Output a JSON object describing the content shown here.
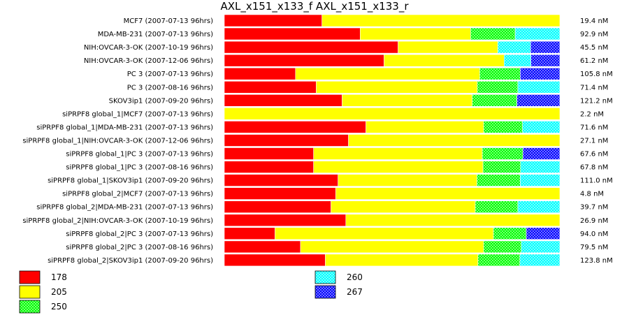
{
  "chart_data": {
    "type": "bar",
    "orientation": "horizontal",
    "stacked": true,
    "normalized": true,
    "title": "AXL_x151_x133_f  AXL_x151_x133_r",
    "categories": [
      "MCF7 (2007-07-13 96hrs)",
      "MDA-MB-231 (2007-07-13 96hrs)",
      "NIH:OVCAR-3-OK (2007-10-19 96hrs)",
      "NIH:OVCAR-3-OK (2007-12-06 96hrs)",
      "PC 3 (2007-07-13 96hrs)",
      "PC 3 (2007-08-16 96hrs)",
      "SKOV3ip1 (2007-09-20 96hrs)",
      "siPRPF8 global_1|MCF7 (2007-07-13 96hrs)",
      "siPRPF8 global_1|MDA-MB-231 (2007-07-13 96hrs)",
      "siPRPF8 global_1|NIH:OVCAR-3-OK (2007-12-06 96hrs)",
      "siPRPF8 global_1|PC 3 (2007-07-13 96hrs)",
      "siPRPF8 global_1|PC 3 (2007-08-16 96hrs)",
      "siPRPF8 global_1|SKOV3ip1 (2007-09-20 96hrs)",
      "siPRPF8 global_2|MCF7 (2007-07-13 96hrs)",
      "siPRPF8 global_2|MDA-MB-231 (2007-07-13 96hrs)",
      "siPRPF8 global_2|NIH:OVCAR-3-OK (2007-10-19 96hrs)",
      "siPRPF8 global_2|PC 3 (2007-07-13 96hrs)",
      "siPRPF8 global_2|PC 3 (2007-08-16 96hrs)",
      "siPRPF8 global_2|SKOV3ip1 (2007-09-20 96hrs)"
    ],
    "concentrations": [
      "19.4 nM",
      "92.9 nM",
      "45.5 nM",
      "61.2 nM",
      "105.8 nM",
      "71.4 nM",
      "121.2 nM",
      "2.2 nM",
      "71.6 nM",
      "27.1 nM",
      "67.6 nM",
      "67.8 nM",
      "111.0 nM",
      "4.8 nM",
      "39.7 nM",
      "26.9 nM",
      "94.0 nM",
      "79.5 nM",
      "123.8 nM"
    ],
    "series": [
      {
        "name": "178",
        "color": "#ff0000",
        "pattern": "solid",
        "values": [
          29.1,
          40.5,
          51.8,
          47.6,
          21.2,
          27.4,
          35.1,
          0,
          42.2,
          37.0,
          26.6,
          26.6,
          33.9,
          33.2,
          31.8,
          36.2,
          15.1,
          22.7,
          30.1
        ]
      },
      {
        "name": "205",
        "color": "#ffff00",
        "pattern": "solid",
        "values": [
          70.9,
          32.9,
          29.7,
          35.8,
          54.9,
          48.0,
          38.8,
          100,
          35.1,
          63.0,
          50.3,
          50.5,
          41.4,
          66.8,
          43.0,
          63.8,
          65.1,
          54.6,
          45.5
        ]
      },
      {
        "name": "250",
        "color": "#00ff00",
        "pattern": "checker",
        "values": [
          0,
          13.3,
          0,
          0,
          12.1,
          12.1,
          13.3,
          0,
          11.6,
          0,
          12.1,
          11.2,
          12.9,
          0,
          12.7,
          0,
          9.8,
          11.2,
          12.5
        ]
      },
      {
        "name": "260",
        "color": "#00ffff",
        "pattern": "checker",
        "values": [
          0,
          13.3,
          9.8,
          8.0,
          0,
          12.5,
          0,
          0,
          11.1,
          0,
          0,
          11.7,
          11.8,
          0,
          12.5,
          0,
          0,
          11.5,
          11.9
        ]
      },
      {
        "name": "267",
        "color": "#0000ff",
        "pattern": "checker",
        "values": [
          0,
          0,
          8.7,
          8.6,
          11.8,
          0,
          12.8,
          0,
          0,
          0,
          11.0,
          0,
          0,
          0,
          0,
          0,
          10.0,
          0,
          0
        ]
      }
    ],
    "xlim": [
      0,
      100
    ],
    "grid": false,
    "legend": {
      "position": "bottom-left",
      "columns": 2
    }
  }
}
